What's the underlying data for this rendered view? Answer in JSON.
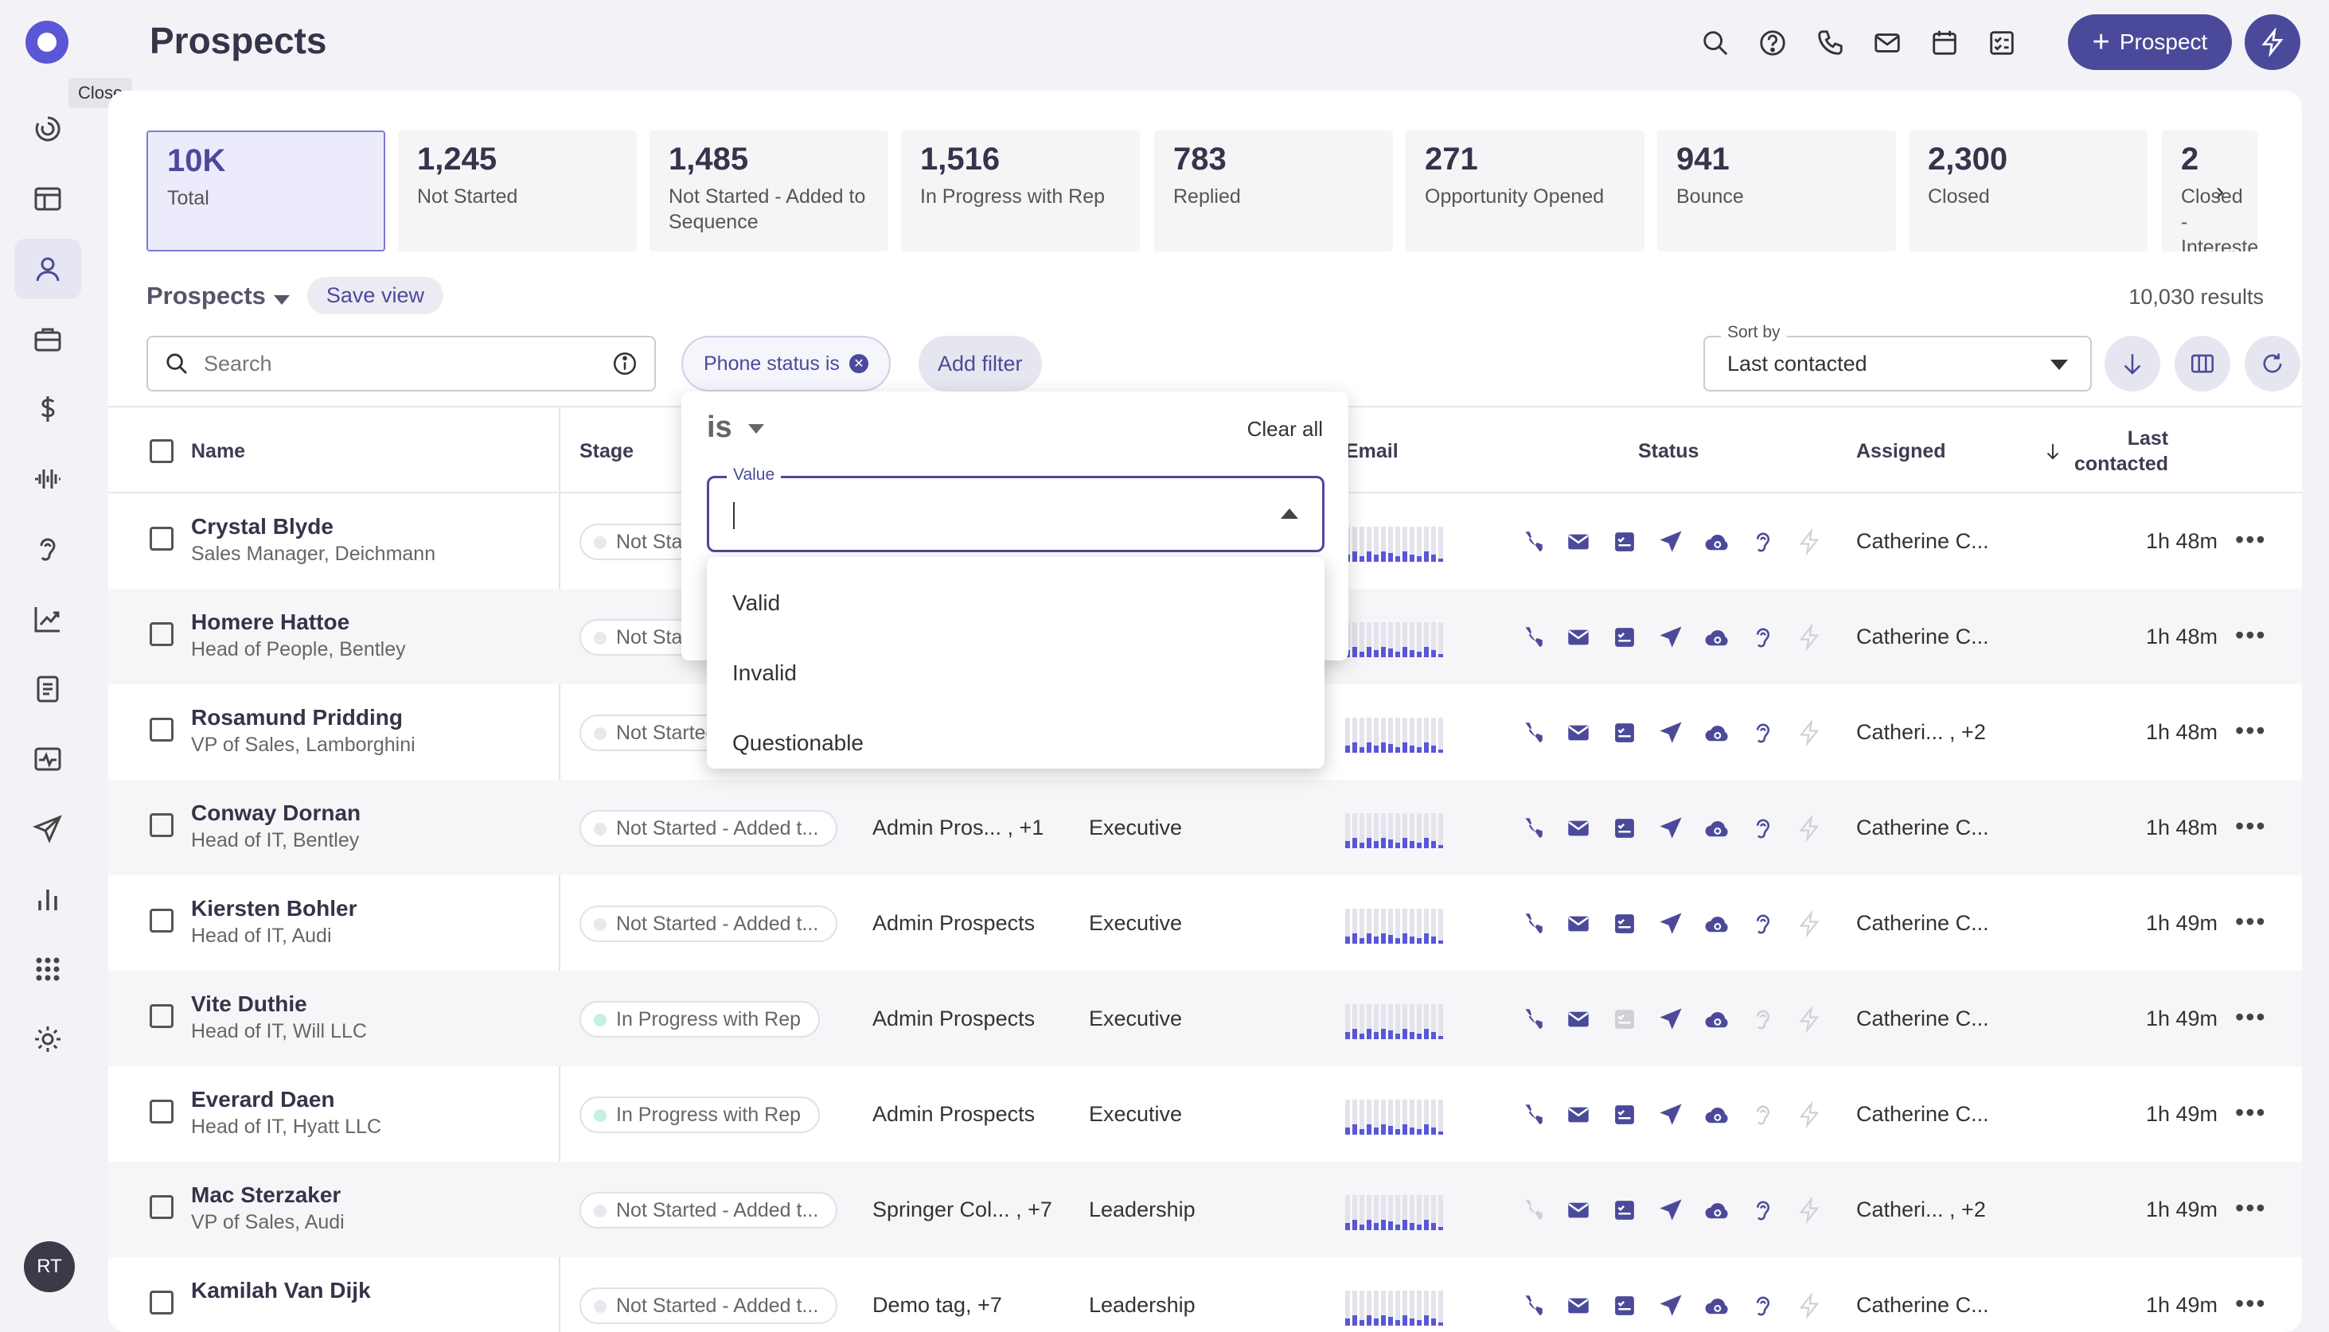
{
  "page": {
    "title": "Prospects",
    "tooltip": "Close",
    "avatar_initials": "RT"
  },
  "topbar": {
    "prospect_button": "Prospect"
  },
  "stats": [
    {
      "value": "10K",
      "label": "Total"
    },
    {
      "value": "1,245",
      "label": "Not Started"
    },
    {
      "value": "1,485",
      "label": "Not Started - Added to Sequence"
    },
    {
      "value": "1,516",
      "label": "In Progress with Rep"
    },
    {
      "value": "783",
      "label": "Replied"
    },
    {
      "value": "271",
      "label": "Opportunity Opened"
    },
    {
      "value": "941",
      "label": "Bounce"
    },
    {
      "value": "2,300",
      "label": "Closed"
    },
    {
      "value": "2",
      "label": "Closed - Interested"
    }
  ],
  "view": {
    "name": "Prospects",
    "save_label": "Save view",
    "results": "10,030 results"
  },
  "search": {
    "placeholder": "Search"
  },
  "filter": {
    "chip_label": "Phone status is",
    "add_label": "Add filter"
  },
  "sort": {
    "legend": "Sort by",
    "value": "Last contacted"
  },
  "columns": {
    "name": "Name",
    "stage": "Stage",
    "email": "Email",
    "status": "Status",
    "assigned": "Assigned",
    "last_line1": "Last",
    "last_line2": "contacted"
  },
  "popover": {
    "operator": "is",
    "clear": "Clear all",
    "value_legend": "Value",
    "options": [
      "Valid",
      "Invalid",
      "Questionable"
    ]
  },
  "rows": [
    {
      "name": "Crystal Blyde",
      "title": "Sales Manager, Deichmann",
      "stage": "Not Started - Added to Sequence",
      "stage_kind": "not",
      "sequence": "",
      "persona": "",
      "assigned": "Catherine C...",
      "last": "1h 48m",
      "phone": true,
      "sms": true,
      "bars": [
        0.2,
        0.3,
        0.15,
        0.3,
        0.2,
        0.3,
        0.25,
        0.15,
        0.3,
        0.2,
        0.15,
        0.3,
        0.2,
        0.1
      ]
    },
    {
      "name": "Homere Hattoe",
      "title": "Head of People, Bentley",
      "stage": "Not Started - Added to Sequence",
      "stage_kind": "not",
      "sequence": "",
      "persona": "",
      "assigned": "Catherine C...",
      "last": "1h 48m",
      "phone": true,
      "sms": true,
      "bars": [
        0.2,
        0.3,
        0.15,
        0.3,
        0.2,
        0.3,
        0.25,
        0.15,
        0.3,
        0.2,
        0.15,
        0.3,
        0.2,
        0.1
      ]
    },
    {
      "name": "Rosamund Pridding",
      "title": "VP of Sales, Lamborghini",
      "stage": "Not Started - Added to Sequence",
      "stage_kind": "not",
      "sequence": "",
      "persona": "",
      "assigned": "Catheri... , +2",
      "last": "1h 48m",
      "phone": true,
      "sms": true,
      "bars": [
        0.2,
        0.3,
        0.15,
        0.3,
        0.2,
        0.3,
        0.25,
        0.15,
        0.3,
        0.2,
        0.15,
        0.3,
        0.2,
        0.1
      ]
    },
    {
      "name": "Conway Dornan",
      "title": "Head of IT, Bentley",
      "stage": "Not Started - Added t...",
      "stage_kind": "not",
      "sequence": "Admin Pros... , +1",
      "persona": "Executive",
      "assigned": "Catherine C...",
      "last": "1h 48m",
      "phone": true,
      "sms": true,
      "bars": [
        0.2,
        0.3,
        0.15,
        0.3,
        0.2,
        0.3,
        0.25,
        0.15,
        0.3,
        0.2,
        0.15,
        0.3,
        0.2,
        0.1
      ]
    },
    {
      "name": "Kiersten Bohler",
      "title": "Head of IT, Audi",
      "stage": "Not Started - Added t...",
      "stage_kind": "not",
      "sequence": "Admin Prospects",
      "persona": "Executive",
      "assigned": "Catherine C...",
      "last": "1h 49m",
      "phone": true,
      "sms": true,
      "bars": [
        0.2,
        0.3,
        0.15,
        0.3,
        0.2,
        0.3,
        0.25,
        0.15,
        0.3,
        0.2,
        0.15,
        0.3,
        0.2,
        0.1
      ]
    },
    {
      "name": "Vite Duthie",
      "title": "Head of IT, Will LLC",
      "stage": "In Progress with Rep",
      "stage_kind": "progress",
      "sequence": "Admin Prospects",
      "persona": "Executive",
      "assigned": "Catherine C...",
      "last": "1h 49m",
      "phone": true,
      "sms": false,
      "bars": [
        0.2,
        0.3,
        0.15,
        0.3,
        0.2,
        0.3,
        0.25,
        0.15,
        0.3,
        0.2,
        0.15,
        0.3,
        0.2,
        0.1
      ]
    },
    {
      "name": "Everard Daen",
      "title": "Head of IT, Hyatt LLC",
      "stage": "In Progress with Rep",
      "stage_kind": "progress",
      "sequence": "Admin Prospects",
      "persona": "Executive",
      "assigned": "Catherine C...",
      "last": "1h 49m",
      "phone": true,
      "sms": true,
      "bars": [
        0.2,
        0.3,
        0.15,
        0.3,
        0.2,
        0.3,
        0.25,
        0.15,
        0.3,
        0.2,
        0.15,
        0.3,
        0.2,
        0.1
      ]
    },
    {
      "name": "Mac Sterzaker",
      "title": "VP of Sales, Audi",
      "stage": "Not Started - Added t...",
      "stage_kind": "not",
      "sequence": "Springer Col... , +7",
      "persona": "Leadership",
      "assigned": "Catheri... , +2",
      "last": "1h 49m",
      "phone": false,
      "sms": true,
      "bars": [
        0.2,
        0.3,
        0.15,
        0.3,
        0.2,
        0.3,
        0.25,
        0.15,
        0.3,
        0.2,
        0.15,
        0.3,
        0.2,
        0.1
      ]
    },
    {
      "name": "Kamilah Van Dijk",
      "title": "",
      "stage": "Not Started - Added t...",
      "stage_kind": "not",
      "sequence": "Demo tag, +7",
      "persona": "Leadership",
      "assigned": "Catherine C...",
      "last": "1h 49m",
      "phone": true,
      "sms": true,
      "bars": [
        0.2,
        0.3,
        0.15,
        0.3,
        0.2,
        0.3,
        0.25,
        0.15,
        0.3,
        0.2,
        0.15,
        0.3,
        0.2,
        0.1
      ]
    }
  ],
  "colors": {
    "accent": "#4b4a9a",
    "brand": "#5a57d6"
  }
}
